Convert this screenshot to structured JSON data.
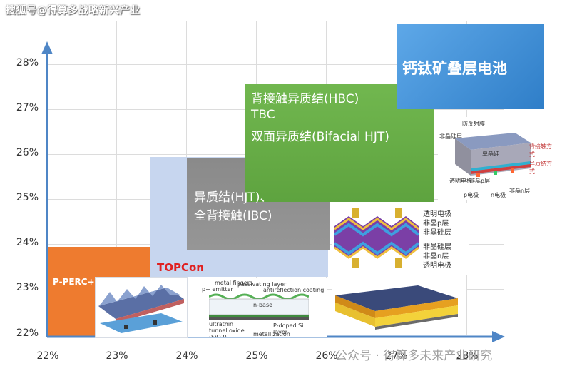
{
  "watermark_top": "搜狐号@得算多战略新兴产业",
  "watermark_bottom": "公众号 · 得算多未来产业研究",
  "y_ticks": [
    "28%",
    "27%",
    "26%",
    "25%",
    "24%",
    "23%",
    "22%"
  ],
  "x_ticks": [
    "22%",
    "23%",
    "24%",
    "25%",
    "26%",
    "27%",
    "28%"
  ],
  "regions": {
    "perc": "P-PERC+",
    "topcon": "TOPCon",
    "hjt_line1": "异质结(HJT)、",
    "hjt_line2": "全背接触(IBC)",
    "hbc_line1": "背接触异质结(HBC)",
    "hbc_line2": "TBC",
    "hbc_line3": "双面异质结(Bifacial HJT)",
    "perovskite": "钙钛矿叠层电池"
  },
  "tandem_labels": {
    "top": "防反射膜",
    "left": "非晶硅层",
    "center": "单晶硅",
    "right1": "背接触方式",
    "right2": "异质结方式",
    "b1": "透明电极",
    "b2": "非晶p层",
    "b3": "非晶n层",
    "b4": "p电极",
    "b5": "n电极"
  },
  "hjt_legend": [
    "透明电极",
    "非晶p层",
    "非晶硅层",
    "非晶硅层",
    "非晶n层",
    "透明电极"
  ],
  "topcon_labels": {
    "metal": "metal fingers",
    "emitter": "p+ emitter",
    "passivation": "passivating layer",
    "ar": "antireflection coating",
    "base": "n-base",
    "tunnel": "ultrathin tunnel oxide (SiO2)",
    "doped": "P-doped Si layer",
    "metallization": "metallization"
  },
  "colors": {
    "axis": "#4f86c6",
    "perc": "#ee7b2f",
    "topcon_label": "#e02020",
    "light_blue": "#c7d6ef",
    "gray": "#8c8c8c",
    "green": "#6ab04a",
    "blue": "#3d8fd8"
  }
}
